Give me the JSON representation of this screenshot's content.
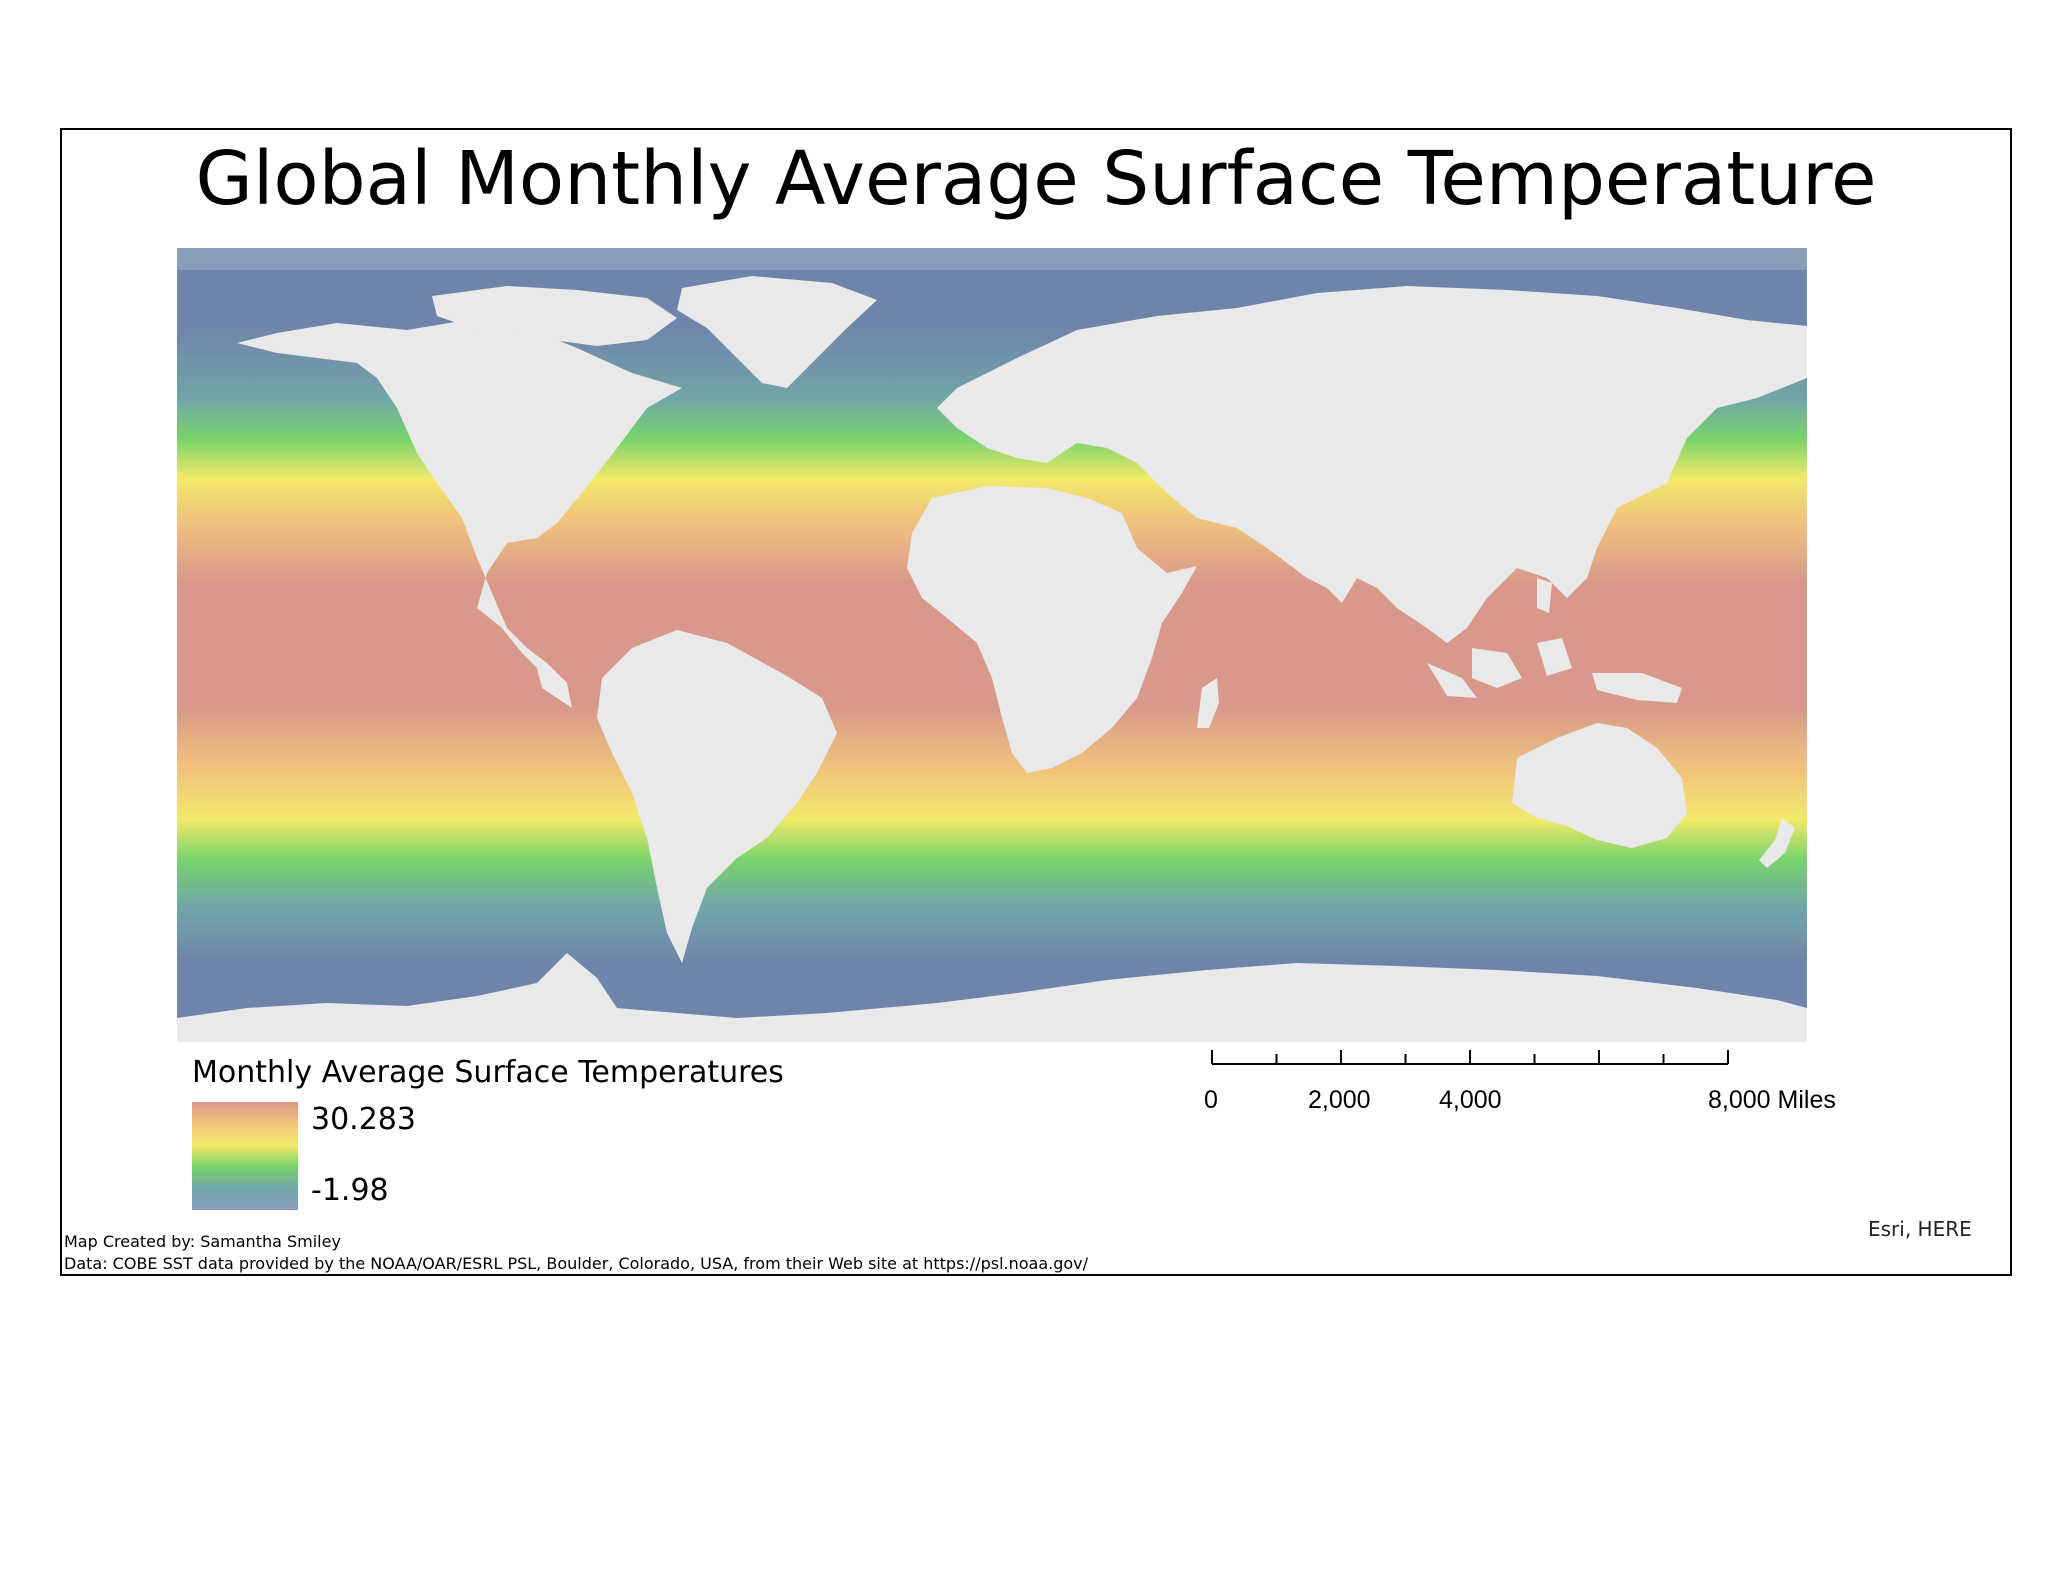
{
  "map": {
    "title": "Global Monthly Average Surface Temperature",
    "layer": "COBE SST",
    "colors": {
      "ocean_cold": "#6f84ab",
      "ocean_cool": "#71a6a8",
      "ocean_green": "#78d36b",
      "ocean_yellow": "#f2ea6a",
      "ocean_warm": "#f1c57c",
      "ocean_hot": "#d9998a",
      "land": "#e9e9e9",
      "polar_band": "#8a9dbb"
    }
  },
  "legend": {
    "title": "Monthly Average Surface Temperatures",
    "max_label": "30.283",
    "min_label": "-1.98",
    "max_value": 30.283,
    "min_value": -1.98,
    "ramp_colors": [
      "#d9998a",
      "#f1c57c",
      "#f2ea6a",
      "#78d36b",
      "#71a6a8",
      "#8a9dbb"
    ]
  },
  "scale_bar": {
    "labels": [
      "0",
      "2,000",
      "4,000",
      "8,000 Miles"
    ],
    "max_value": 8000,
    "unit": "Miles",
    "divisions": 8
  },
  "attribution": "Esri, HERE",
  "credits": {
    "author": "Map Created by: Samantha Smiley",
    "data_source": "Data: COBE SST data provided by the NOAA/OAR/ESRL PSL, Boulder, Colorado, USA, from their Web site at https://psl.noaa.gov/"
  }
}
